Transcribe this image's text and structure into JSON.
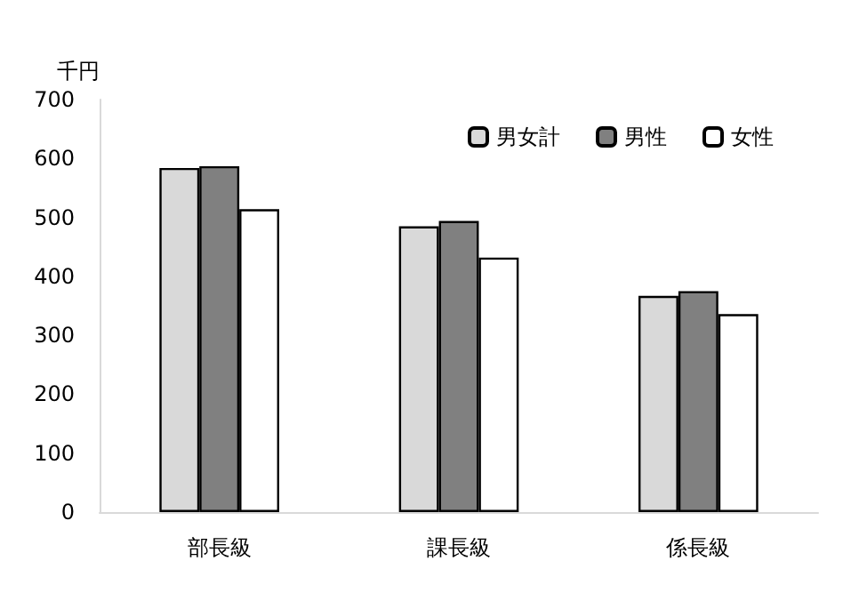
{
  "chart_data": {
    "type": "bar",
    "ylabel": "千円",
    "categories": [
      "部長級",
      "課長級",
      "係長級"
    ],
    "series": [
      {
        "name": "男女計",
        "color": "#d9d9d9",
        "values": [
          584,
          485,
          367
        ]
      },
      {
        "name": "男性",
        "color": "#808080",
        "values": [
          587,
          494,
          375
        ]
      },
      {
        "name": "女性",
        "color": "#ffffff",
        "values": [
          514,
          432,
          336
        ]
      }
    ],
    "ylim": [
      0,
      700
    ],
    "yticks": [
      0,
      100,
      200,
      300,
      400,
      500,
      600,
      700
    ],
    "grid": false,
    "legend": "top right"
  }
}
